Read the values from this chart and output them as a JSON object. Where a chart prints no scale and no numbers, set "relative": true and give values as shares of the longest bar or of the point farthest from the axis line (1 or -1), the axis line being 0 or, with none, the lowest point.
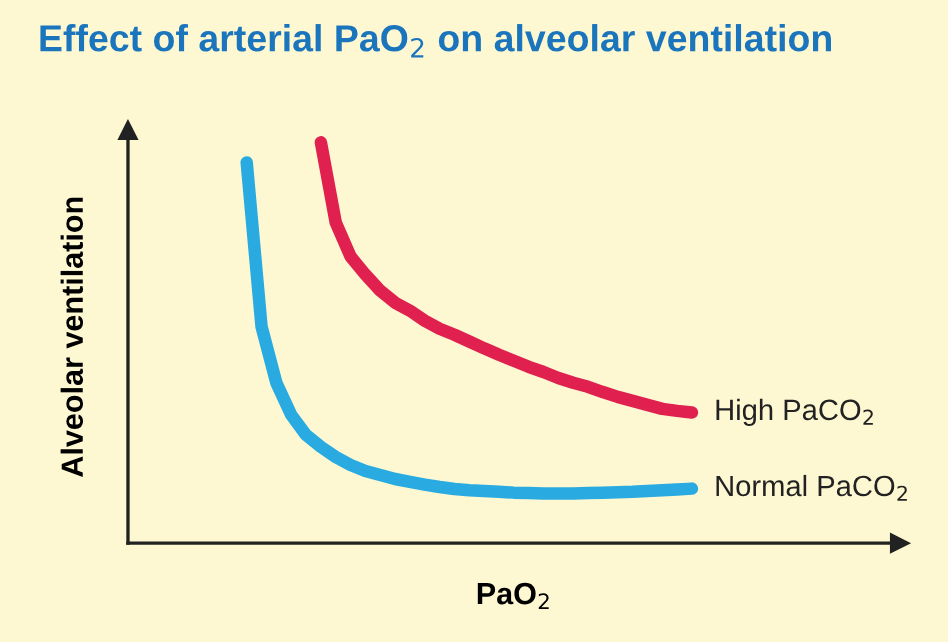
{
  "chart_data": {
    "type": "line",
    "title": "Effect of arterial PaO$_{2}$ on alveolar ventilation",
    "xlabel": "PaO$_{2}$",
    "ylabel": "Alveolar ventilation",
    "relative": true,
    "categories": [
      null,
      null,
      null,
      null,
      null,
      null,
      null,
      null,
      null,
      null,
      null,
      null,
      null,
      null,
      null,
      null,
      null,
      null,
      null,
      null,
      null,
      null,
      null,
      null,
      null,
      null,
      null,
      null,
      null,
      null,
      null,
      null,
      null,
      null,
      null,
      null,
      null,
      null,
      null,
      null,
      null,
      null,
      null,
      null,
      null,
      null,
      null,
      null,
      null,
      null,
      null,
      null,
      null
    ],
    "series": [
      {
        "name": "High PaCO$_{2}$",
        "color": "#e0214f",
        "values": [
          null,
          null,
          null,
          null,
          null,
          null,
          null,
          null,
          null,
          null,
          null,
          null,
          null,
          1.0,
          0.8,
          0.715,
          0.67,
          0.63,
          0.6,
          0.58,
          0.555,
          0.535,
          0.52,
          0.503,
          0.486,
          0.47,
          0.455,
          0.44,
          0.427,
          0.412,
          0.4,
          0.39,
          0.377,
          0.365,
          0.355,
          0.345,
          0.335,
          0.33,
          0.326,
          null,
          null,
          null,
          null,
          null,
          null,
          null,
          null,
          null,
          null,
          null,
          null,
          null,
          null
        ]
      },
      {
        "name": "Normal PaCO$_{2}$",
        "color": "#29abe2",
        "values": [
          null,
          null,
          null,
          null,
          null,
          null,
          null,
          null,
          0.95,
          0.54,
          0.4,
          0.32,
          0.27,
          0.24,
          0.215,
          0.195,
          0.18,
          0.17,
          0.16,
          0.153,
          0.146,
          0.14,
          0.135,
          0.132,
          0.13,
          0.128,
          0.126,
          0.125,
          0.124,
          0.124,
          0.124,
          0.125,
          0.126,
          0.127,
          0.128,
          0.13,
          0.132,
          0.134,
          0.136,
          null,
          null,
          null,
          null,
          null,
          null,
          null,
          null,
          null,
          null,
          null,
          null,
          null,
          null
        ]
      }
    ]
  }
}
